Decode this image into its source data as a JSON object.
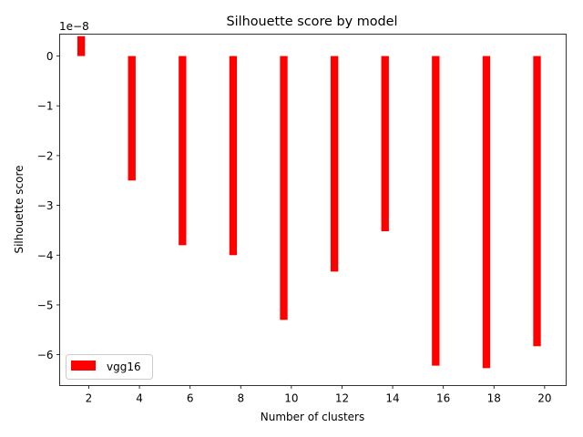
{
  "chart_data": {
    "type": "bar",
    "title": "Silhouette score by model",
    "xlabel": "Number of clusters",
    "ylabel": "Silhouette score",
    "y_offset_label": "1e−8",
    "y_scale": 1e-08,
    "x": [
      1.7,
      3.7,
      5.7,
      7.7,
      9.7,
      11.7,
      13.7,
      15.7,
      17.7,
      19.7
    ],
    "series": [
      {
        "name": "vgg16",
        "color": "#ff0000",
        "values": [
          4e-09,
          -2.5e-08,
          -3.8e-08,
          -4e-08,
          -5.3e-08,
          -4.33e-08,
          -3.52e-08,
          -6.22e-08,
          -6.27e-08,
          -5.83e-08
        ]
      }
    ],
    "x_ticks": [
      2,
      4,
      6,
      8,
      10,
      12,
      14,
      16,
      18,
      20
    ],
    "x_tick_labels": [
      "2",
      "4",
      "6",
      "8",
      "10",
      "12",
      "14",
      "16",
      "18",
      "20"
    ],
    "y_ticks": [
      0,
      -1,
      -2,
      -3,
      -4,
      -5,
      -6
    ],
    "y_tick_labels": [
      "0",
      "−1",
      "−2",
      "−3",
      "−4",
      "−5",
      "−6"
    ],
    "xlim": [
      0.85,
      20.85
    ],
    "ylim": [
      -6.62,
      0.44
    ],
    "bar_width": 0.3,
    "legend_position": "lower-left",
    "grid": false
  }
}
